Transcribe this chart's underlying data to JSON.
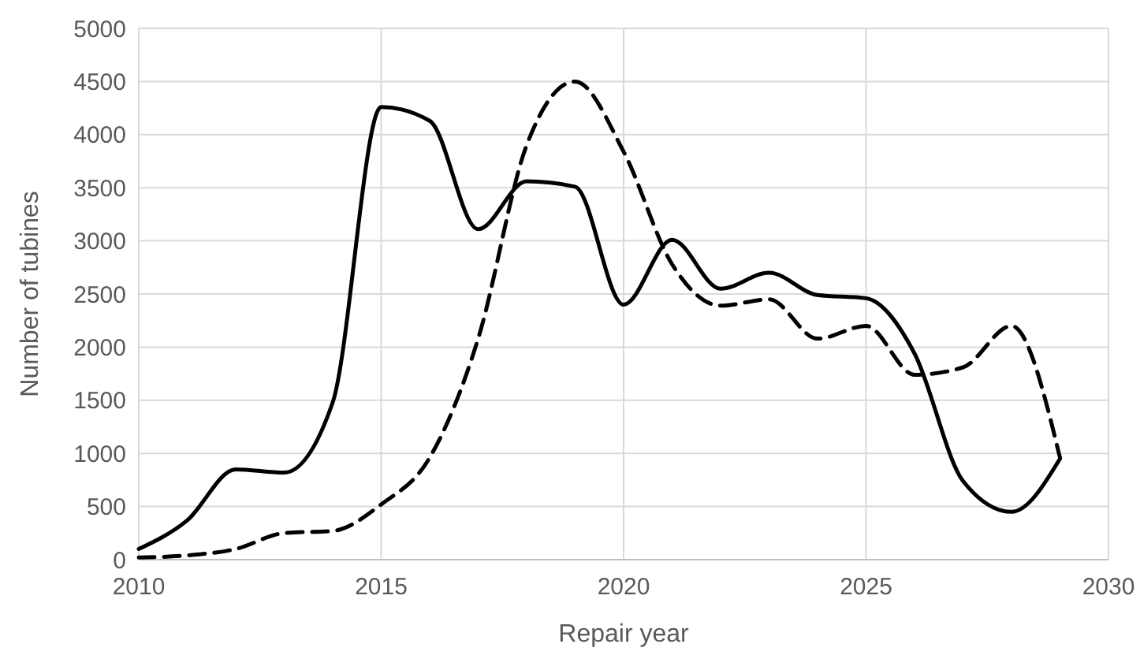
{
  "chart_data": {
    "type": "line",
    "xlabel": "Repair year",
    "ylabel": "Number of tubines",
    "x": [
      2010,
      2011,
      2012,
      2013,
      2014,
      2015,
      2016,
      2017,
      2018,
      2019,
      2020,
      2021,
      2022,
      2023,
      2024,
      2025,
      2026,
      2027,
      2028,
      2029
    ],
    "series": [
      {
        "color": "#000000",
        "line_style": "solid",
        "values": [
          100,
          370,
          850,
          820,
          1480,
          4260,
          4130,
          3110,
          3560,
          3510,
          2400,
          3010,
          2550,
          2700,
          2490,
          2460,
          1940,
          740,
          450,
          950
        ]
      },
      {
        "color": "#000000",
        "line_style": "dashed",
        "values": [
          20,
          40,
          100,
          250,
          270,
          520,
          960,
          2080,
          3900,
          4500,
          3840,
          2780,
          2390,
          2450,
          2080,
          2200,
          1740,
          1810,
          2200,
          960
        ]
      }
    ],
    "xlim": [
      2010,
      2030
    ],
    "xticks": [
      2010,
      2015,
      2020,
      2025,
      2030
    ],
    "ylim": [
      0,
      5000
    ],
    "yticks": [
      0,
      500,
      1000,
      1500,
      2000,
      2500,
      3000,
      3500,
      4000,
      4500,
      5000
    ],
    "grid": true,
    "marker": "none"
  }
}
